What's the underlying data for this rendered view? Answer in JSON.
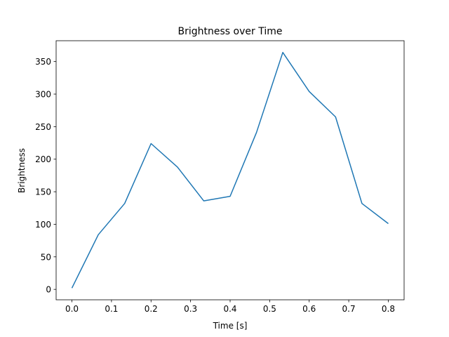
{
  "chart_data": {
    "type": "line",
    "title": "Brightness over Time",
    "xlabel": "Time [s]",
    "ylabel": "Brightness",
    "xlim": [
      -0.04,
      0.84
    ],
    "ylim": [
      -16,
      382
    ],
    "xticks": [
      0.0,
      0.1,
      0.2,
      0.3,
      0.4,
      0.5,
      0.6,
      0.7,
      0.8
    ],
    "xtick_labels": [
      "0.0",
      "0.1",
      "0.2",
      "0.3",
      "0.4",
      "0.5",
      "0.6",
      "0.7",
      "0.8"
    ],
    "yticks": [
      0,
      50,
      100,
      150,
      200,
      250,
      300,
      350
    ],
    "ytick_labels": [
      "0",
      "50",
      "100",
      "150",
      "200",
      "250",
      "300",
      "350"
    ],
    "grid": false,
    "series": [
      {
        "name": "Brightness",
        "color": "#1f77b4",
        "x": [
          0.0,
          0.0667,
          0.1333,
          0.2,
          0.2667,
          0.3333,
          0.4,
          0.4667,
          0.5333,
          0.6,
          0.6667,
          0.7333,
          0.8
        ],
        "y": [
          2,
          84,
          132,
          224,
          188,
          136,
          143,
          241,
          364,
          304,
          265,
          132,
          101
        ]
      }
    ]
  }
}
